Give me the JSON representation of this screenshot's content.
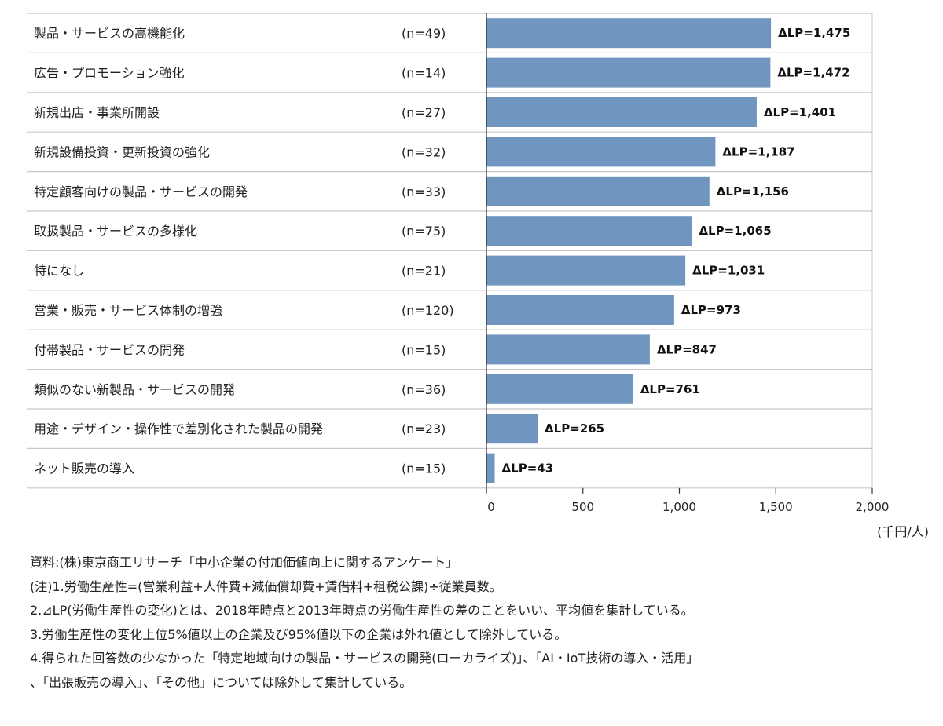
{
  "chart_data": {
    "type": "bar",
    "orientation": "horizontal",
    "categories": [
      "製品・サービスの高機能化",
      "広告・プロモーション強化",
      "新規出店・事業所開設",
      "新規設備投資・更新投資の強化",
      "特定顧客向けの製品・サービスの開発",
      "取扱製品・サービスの多様化",
      "特になし",
      "営業・販売・サービス体制の増強",
      "付帯製品・サービスの開発",
      "類似のない新製品・サービスの開発",
      "用途・デザイン・操作性で差別化された製品の開発",
      "ネット販売の導入"
    ],
    "n_labels": [
      "(n=49)",
      "(n=14)",
      "(n=27)",
      "(n=32)",
      "(n=33)",
      "(n=75)",
      "(n=21)",
      "(n=120)",
      "(n=15)",
      "(n=36)",
      "(n=23)",
      "(n=15)"
    ],
    "values": [
      1475,
      1472,
      1401,
      1187,
      1156,
      1065,
      1031,
      973,
      847,
      761,
      265,
      43
    ],
    "data_labels": [
      "ΔLP=1,475",
      "ΔLP=1,472",
      "ΔLP=1,401",
      "ΔLP=1,187",
      "ΔLP=1,156",
      "ΔLP=1,065",
      "ΔLP=1,031",
      "ΔLP=973",
      "ΔLP=847",
      "ΔLP=761",
      "ΔLP=265",
      "ΔLP=43"
    ],
    "xlim": [
      0,
      2000
    ],
    "x_ticks": [
      0,
      500,
      1000,
      1500,
      2000
    ],
    "x_tick_labels": [
      "0",
      "500",
      "1,000",
      "1,500",
      "2,000"
    ],
    "xlabel": "(千円/人)",
    "bar_color": "#7096c0",
    "grid": false
  },
  "notes": [
    "資料:(株)東京商工リサーチ「中小企業の付加価値向上に関するアンケート」",
    "(注)1.労働生産性=(営業利益+人件費+減価償却費+賃借料+租税公課)÷従業員数。",
    "2.⊿LP(労働生産性の変化)とは、2018年時点と2013年時点の労働生産性の差のことをいい、平均値を集計している。",
    "3.労働生産性の変化上位5%値以上の企業及び95%値以下の企業は外れ値として除外している。",
    "4.得られた回答数の少なかった「特定地域向けの製品・サービスの開発(ローカライズ)」、「AI・IoT技術の導入・活用」",
    "、「出張販売の導入」、「その他」については除外して集計している。"
  ]
}
